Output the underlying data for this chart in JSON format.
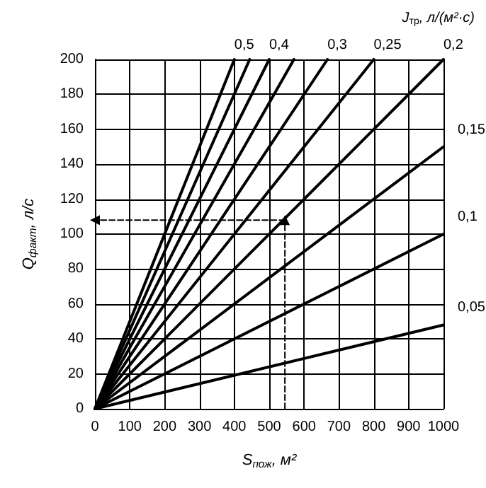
{
  "chart_data": {
    "type": "line",
    "xlabel": "S$_{пож}$, м²",
    "ylabel": "Q$_{факт}$, л/с",
    "annotations": [
      "J$_{тр}$, л/(м²·с)"
    ],
    "series": [
      {
        "name": "0,5",
        "color": "#000000",
        "x": [
          0,
          400
        ],
        "values": [
          0,
          200
        ]
      },
      {
        "color": "#000000",
        "x": [
          0,
          444
        ],
        "values": [
          0,
          200
        ]
      },
      {
        "name": "0,4",
        "color": "#000000",
        "x": [
          0,
          500
        ],
        "values": [
          0,
          200
        ]
      },
      {
        "color": "#000000",
        "x": [
          0,
          571
        ],
        "values": [
          0,
          200
        ]
      },
      {
        "name": "0,3",
        "color": "#000000",
        "x": [
          0,
          667
        ],
        "values": [
          0,
          200
        ]
      },
      {
        "name": "0,25",
        "color": "#000000",
        "x": [
          0,
          800
        ],
        "values": [
          0,
          200
        ]
      },
      {
        "name": "0,2",
        "color": "#000000",
        "x": [
          0,
          1000
        ],
        "values": [
          0,
          200
        ]
      },
      {
        "name": "0,15",
        "color": "#000000",
        "x": [
          0,
          1000
        ],
        "values": [
          0,
          150
        ]
      },
      {
        "name": "0,1",
        "color": "#000000",
        "x": [
          0,
          1000
        ],
        "values": [
          0,
          100
        ]
      },
      {
        "name": "0,05",
        "color": "#000000",
        "x": [
          0,
          1000
        ],
        "values": [
          0,
          48
        ]
      },
      {
        "color": "#000000",
        "x": [
          545,
          545
        ],
        "values": [
          0,
          108
        ],
        "line_style": "dashed",
        "marker": "triangle"
      },
      {
        "color": "#000000",
        "x": [
          545,
          0
        ],
        "values": [
          108,
          108
        ],
        "line_style": "dashed",
        "marker": "triangle"
      }
    ],
    "xlim": [
      0,
      1000
    ],
    "xticks": [
      0,
      100,
      200,
      300,
      400,
      500,
      600,
      700,
      800,
      900,
      1000
    ],
    "ylim": [
      0,
      200
    ],
    "yticks": [
      0,
      20,
      40,
      60,
      80,
      100,
      120,
      140,
      160,
      180,
      200
    ],
    "grid": true,
    "legend": false,
    "line_style": "solid",
    "marker": "none"
  }
}
